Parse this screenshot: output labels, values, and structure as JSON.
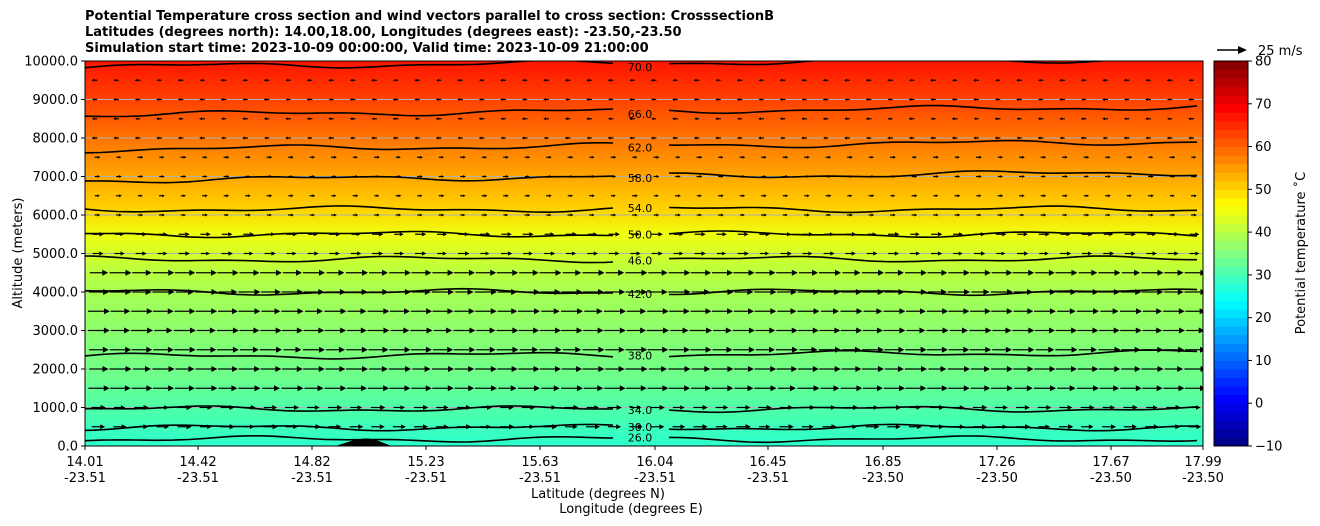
{
  "title_lines": [
    "Potential Temperature cross section and wind vectors parallel to cross section: CrosssectionB",
    "Latitudes (degrees north): 14.00,18.00, Longitudes (degrees east): -23.50,-23.50",
    "Simulation start time: 2023-10-09 00:00:00, Valid time: 2023-10-09 21:00:00"
  ],
  "chart_data": {
    "type": "contour",
    "y_label": "Altitude (meters)",
    "x_label_lines": [
      "Latitude (degrees N)",
      "Longitude (degrees E)"
    ],
    "ylim": [
      0,
      10000
    ],
    "y_ticks": [
      "0.0",
      "1000.0",
      "2000.0",
      "3000.0",
      "4000.0",
      "5000.0",
      "6000.0",
      "7000.0",
      "8000.0",
      "9000.0",
      "10000.0"
    ],
    "x_ticks": [
      {
        "lat": "14.01",
        "lon": "-23.51"
      },
      {
        "lat": "14.42",
        "lon": "-23.51"
      },
      {
        "lat": "14.82",
        "lon": "-23.51"
      },
      {
        "lat": "15.23",
        "lon": "-23.51"
      },
      {
        "lat": "15.63",
        "lon": "-23.51"
      },
      {
        "lat": "16.04",
        "lon": "-23.51"
      },
      {
        "lat": "16.45",
        "lon": "-23.51"
      },
      {
        "lat": "16.85",
        "lon": "-23.50"
      },
      {
        "lat": "17.26",
        "lon": "-23.50"
      },
      {
        "lat": "17.67",
        "lon": "-23.50"
      },
      {
        "lat": "17.99",
        "lon": "-23.50"
      }
    ],
    "grid": "horizontal",
    "colorbar": {
      "label": "Potential temperature $^\\circ$C",
      "range": [
        -10,
        80
      ],
      "ticks": [
        "-10",
        "0",
        "10",
        "20",
        "30",
        "40",
        "50",
        "60",
        "70",
        "80"
      ],
      "colormap": "jet"
    },
    "quiver_key": "25 m/s",
    "contours": [
      {
        "label": "26.0",
        "altitude": 180
      },
      {
        "label": "30.0",
        "altitude": 480
      },
      {
        "label": "34.0",
        "altitude": 960
      },
      {
        "label": "38.0",
        "altitude": 2400
      },
      {
        "label": "42.0",
        "altitude": 4000
      },
      {
        "label": "46.0",
        "altitude": 4850
      },
      {
        "label": "50.0",
        "altitude": 5500
      },
      {
        "label": "54.0",
        "altitude": 6150
      },
      {
        "label": "58.0",
        "altitude": 6900
      },
      {
        "label": "62.0",
        "altitude": 7700
      },
      {
        "label": "66.0",
        "altitude": 8600
      },
      {
        "label": "70.0",
        "altitude": 9850
      }
    ],
    "wind_rows_m": [
      500,
      1000,
      1500,
      2000,
      2500,
      3000,
      3500,
      4000,
      4500,
      5000,
      5500,
      6000,
      6500,
      7000,
      7500,
      8000,
      8500,
      9000,
      9500
    ]
  }
}
